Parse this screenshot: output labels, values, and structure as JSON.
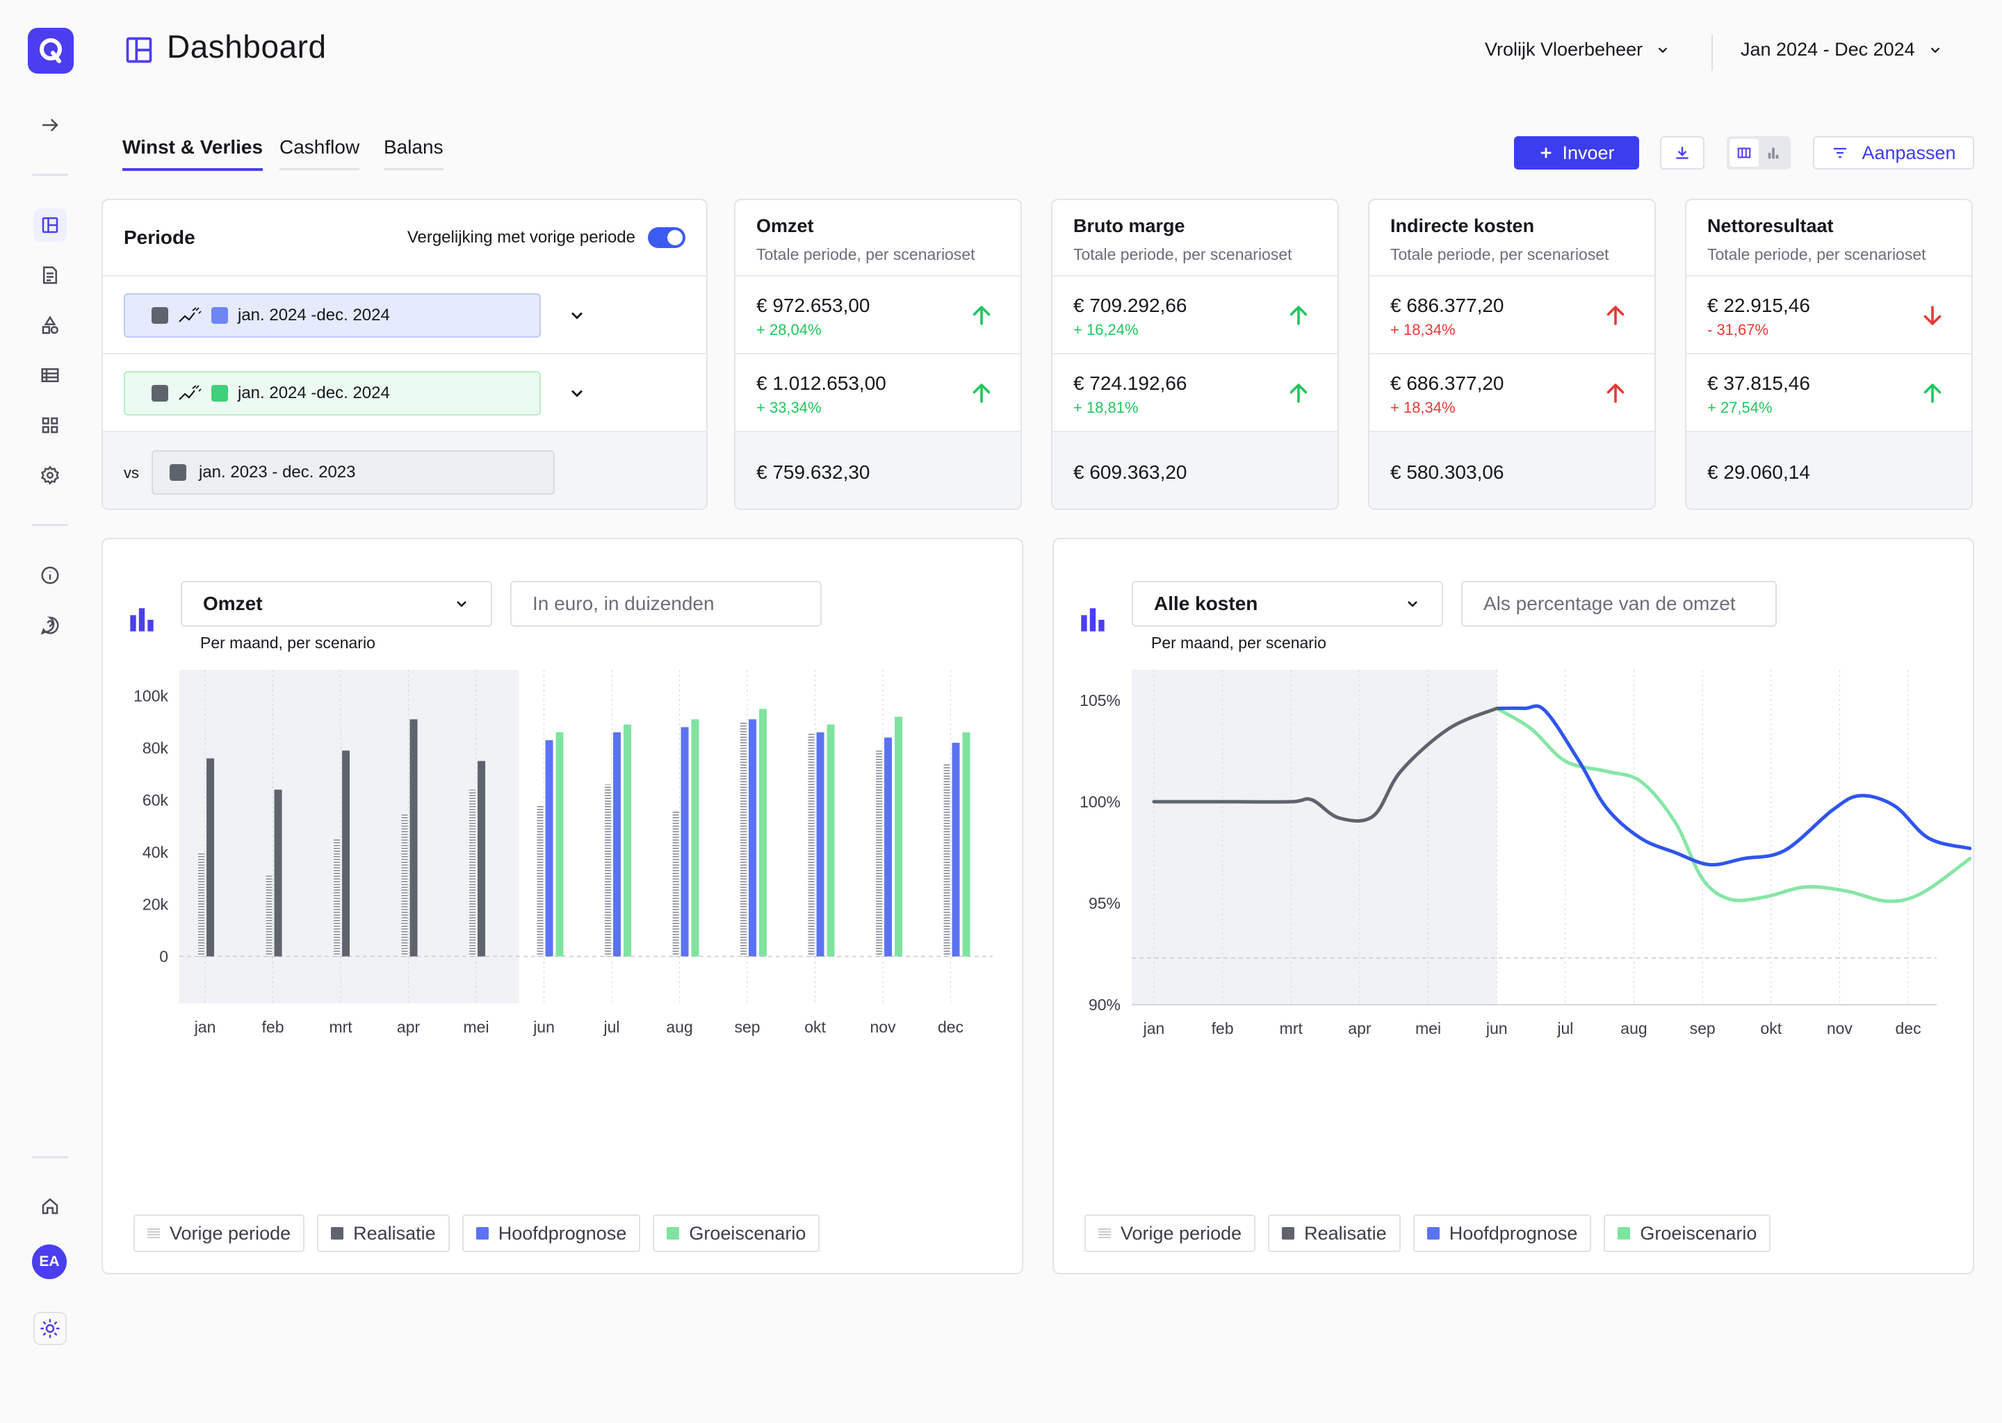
{
  "app": {
    "title": "Dashboard"
  },
  "header": {
    "company": "Vrolijk Vloerbeheer",
    "date_range": "Jan 2024 - Dec 2024"
  },
  "sidebar": {
    "avatar_initials": "EA"
  },
  "tabs": [
    {
      "label": "Winst & Verlies"
    },
    {
      "label": "Cashflow"
    },
    {
      "label": "Balans"
    }
  ],
  "toolbar": {
    "input_label": "Invoer",
    "customize_label": "Aanpassen"
  },
  "periods": {
    "title": "Periode",
    "compare_label": "Vergelijking met vorige periode",
    "compare_enabled": true,
    "rows": [
      {
        "label": "jan. 2024 -dec. 2024"
      },
      {
        "label": "jan. 2024 -dec. 2024"
      }
    ],
    "vs_label": "vs",
    "vs_period": "jan. 2023 - dec. 2023"
  },
  "kpis": [
    {
      "title": "Omzet",
      "subtitle": "Totale periode, per scenarioset",
      "rows": [
        {
          "value": "€ 972.653,00",
          "delta": "+ 28,04%",
          "trend": "up",
          "positive": true
        },
        {
          "value": "€ 1.012.653,00",
          "delta": "+ 33,34%",
          "trend": "up",
          "positive": true
        }
      ],
      "previous": "€ 759.632,30"
    },
    {
      "title": "Bruto marge",
      "subtitle": "Totale periode, per scenarioset",
      "rows": [
        {
          "value": "€ 709.292,66",
          "delta": "+ 16,24%",
          "trend": "up",
          "positive": true
        },
        {
          "value": "€  724.192,66",
          "delta": "+ 18,81%",
          "trend": "up",
          "positive": true
        }
      ],
      "previous": "€ 609.363,20"
    },
    {
      "title": "Indirecte kosten",
      "subtitle": "Totale periode, per scenarioset",
      "rows": [
        {
          "value": "€ 686.377,20",
          "delta": "+ 18,34%",
          "trend": "up",
          "positive": false
        },
        {
          "value": "€ 686.377,20",
          "delta": "+ 18,34%",
          "trend": "up",
          "positive": false
        }
      ],
      "previous": "€ 580.303,06"
    },
    {
      "title": "Nettoresultaat",
      "subtitle": "Totale periode, per scenarioset",
      "rows": [
        {
          "value": "€ 22.915,46",
          "delta": "- 31,67%",
          "trend": "down",
          "positive": false
        },
        {
          "value": "€ 37.815,46",
          "delta": "+ 27,54%",
          "trend": "up",
          "positive": true
        }
      ],
      "previous": "€ 29.060,14"
    }
  ],
  "colors": {
    "accent": "#4b3ef0",
    "previous": "#c9cbd1",
    "realisatie": "#5f636d",
    "hoofdprognose": "#5b73f2",
    "groeiscenario": "#7fe3a0",
    "line_forecast": "#2f55f0",
    "line_growth": "#86e6a6",
    "positive": "#22c55e",
    "negative": "#e53935"
  },
  "panels": [
    {
      "metric": "Omzet",
      "unit": "In euro, in duizenden",
      "subtitle": "Per maand, per scenario"
    },
    {
      "metric": "Alle kosten",
      "unit": "Als percentage van de omzet",
      "subtitle": "Per maand, per scenario"
    }
  ],
  "legend": [
    "Vorige periode",
    "Realisatie",
    "Hoofdprognose",
    "Groeiscenario"
  ],
  "chart_data": [
    {
      "type": "bar",
      "title": "Omzet",
      "ylabel": "In euro, in duizenden",
      "categories": [
        "jan",
        "feb",
        "mrt",
        "apr",
        "mei",
        "jun",
        "jul",
        "aug",
        "sep",
        "okt",
        "nov",
        "dec"
      ],
      "y_ticks": [
        "0",
        "20k",
        "40k",
        "60k",
        "80k",
        "100k"
      ],
      "ylim": [
        -18,
        110
      ],
      "actual_months": 5,
      "series": [
        {
          "name": "Vorige periode",
          "values": [
            40,
            31,
            45,
            55,
            64,
            58,
            66,
            56,
            90,
            86,
            79,
            74
          ]
        },
        {
          "name": "Realisatie",
          "values": [
            76,
            64,
            79,
            91,
            75,
            null,
            null,
            null,
            null,
            null,
            null,
            null
          ]
        },
        {
          "name": "Hoofdprognose",
          "values": [
            null,
            null,
            null,
            null,
            null,
            83,
            86,
            88,
            91,
            86,
            84,
            82
          ]
        },
        {
          "name": "Groeiscenario",
          "values": [
            null,
            null,
            null,
            null,
            null,
            86,
            89,
            91,
            95,
            89,
            92,
            86
          ]
        }
      ]
    },
    {
      "type": "line",
      "title": "Alle kosten",
      "ylabel": "Als percentage van de omzet",
      "categories": [
        "jan",
        "feb",
        "mrt",
        "apr",
        "mei",
        "jun",
        "jul",
        "aug",
        "sep",
        "okt",
        "nov",
        "dec"
      ],
      "y_ticks": [
        "90%",
        "95%",
        "100%",
        "105%"
      ],
      "ylim": [
        90,
        106.5
      ],
      "actual_months": 5,
      "series": [
        {
          "name": "Realisatie",
          "x": [
            0,
            1,
            2,
            2.3,
            2.7,
            3.2,
            3.6,
            4.3,
            5.0
          ],
          "values": [
            100.0,
            100.0,
            100.0,
            100.1,
            99.2,
            99.3,
            101.5,
            103.6,
            104.6
          ]
        },
        {
          "name": "Hoofdprognose",
          "x": [
            5.0,
            5.4,
            5.7,
            6.2,
            6.6,
            7.1,
            7.6,
            8.1,
            8.6,
            9.2,
            9.9,
            10.3,
            10.8,
            11.3,
            11.9
          ],
          "values": [
            104.6,
            104.6,
            104.5,
            102.0,
            99.7,
            98.2,
            97.5,
            96.9,
            97.2,
            97.6,
            99.6,
            100.3,
            99.8,
            98.2,
            97.7
          ]
        },
        {
          "name": "Groeiscenario",
          "x": [
            5.0,
            5.5,
            6.0,
            6.6,
            7.1,
            7.6,
            8.0,
            8.4,
            8.9,
            9.5,
            10.1,
            10.7,
            11.2,
            11.9
          ],
          "values": [
            104.6,
            103.6,
            102.0,
            101.5,
            101.0,
            99.0,
            96.2,
            95.2,
            95.3,
            95.8,
            95.6,
            95.1,
            95.5,
            97.2
          ]
        }
      ]
    }
  ]
}
